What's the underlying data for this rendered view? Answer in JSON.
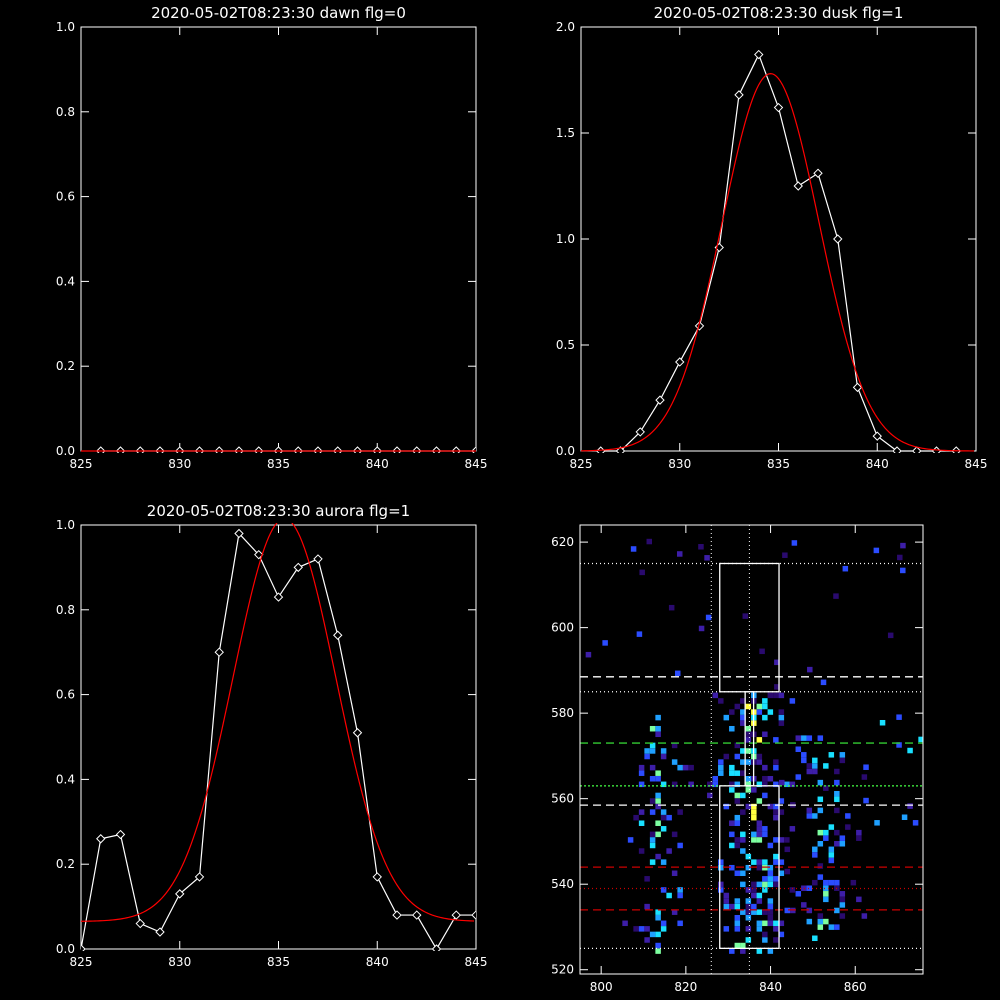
{
  "chart_data": [
    {
      "type": "line",
      "panel": "top-left",
      "title": "2020-05-02T08:23:30 dawn flg=0",
      "xlim": [
        825,
        845
      ],
      "ylim": [
        0,
        1
      ],
      "xticks": [
        825,
        830,
        835,
        840,
        845
      ],
      "yticks": [
        0.0,
        0.2,
        0.4,
        0.6,
        0.8,
        1.0
      ],
      "ytick_labels": [
        "0.0",
        "0.2",
        "0.4",
        "0.6",
        "0.8",
        "1.0"
      ],
      "series": [
        {
          "color": "#ffffff",
          "marker": "diamond",
          "x": [
            826,
            827,
            828,
            829,
            830,
            831,
            832,
            833,
            834,
            835,
            836,
            837,
            838,
            839,
            840,
            841,
            842,
            843,
            844,
            845
          ],
          "y": [
            0,
            0,
            0,
            0,
            0,
            0,
            0,
            0,
            0,
            0,
            0,
            0,
            0,
            0,
            0,
            0,
            0,
            0,
            0,
            0
          ]
        },
        {
          "color": "#ff0000",
          "marker": "none",
          "x": [
            825,
            845
          ],
          "y": [
            0,
            0
          ]
        }
      ]
    },
    {
      "type": "line",
      "panel": "top-right",
      "title": "2020-05-02T08:23:30 dusk flg=1",
      "xlim": [
        825,
        845
      ],
      "ylim": [
        0,
        2
      ],
      "xticks": [
        825,
        830,
        835,
        840,
        845
      ],
      "yticks": [
        0.0,
        0.5,
        1.0,
        1.5,
        2.0
      ],
      "ytick_labels": [
        "0.0",
        "0.5",
        "1.0",
        "1.5",
        "2.0"
      ],
      "series": [
        {
          "color": "#ffffff",
          "marker": "diamond",
          "x": [
            826,
            827,
            828,
            829,
            830,
            831,
            832,
            833,
            834,
            835,
            836,
            837,
            838,
            839,
            840,
            841,
            842,
            843,
            844
          ],
          "y": [
            0,
            0,
            0.09,
            0.24,
            0.42,
            0.59,
            0.96,
            1.68,
            1.87,
            1.62,
            1.25,
            1.31,
            1.0,
            0.3,
            0.07,
            0,
            0,
            0,
            0
          ]
        },
        {
          "color": "#ff0000",
          "marker": "none",
          "gaussian": {
            "amp": 1.78,
            "center": 834.6,
            "sigma": 2.45,
            "offset": 0
          }
        }
      ]
    },
    {
      "type": "line",
      "panel": "bottom-left",
      "title": "2020-05-02T08:23:30 aurora flg=1",
      "xlim": [
        825,
        845
      ],
      "ylim": [
        0,
        1
      ],
      "xticks": [
        825,
        830,
        835,
        840,
        845
      ],
      "yticks": [
        0.0,
        0.2,
        0.4,
        0.6,
        0.8,
        1.0
      ],
      "ytick_labels": [
        "0.0",
        "0.2",
        "0.4",
        "0.6",
        "0.8",
        "1.0"
      ],
      "series": [
        {
          "color": "#ffffff",
          "marker": "diamond",
          "x": [
            825,
            826,
            827,
            828,
            829,
            830,
            831,
            832,
            833,
            834,
            835,
            836,
            837,
            838,
            839,
            840,
            841,
            842,
            843,
            844,
            845
          ],
          "y": [
            0.0,
            0.26,
            0.27,
            0.06,
            0.04,
            0.13,
            0.17,
            0.7,
            0.98,
            0.93,
            0.83,
            0.9,
            0.92,
            0.74,
            0.51,
            0.17,
            0.08,
            0.08,
            0.0,
            0.08,
            0.08
          ]
        },
        {
          "color": "#ff0000",
          "marker": "none",
          "gaussian": {
            "amp": 0.95,
            "center": 835.3,
            "sigma": 2.6,
            "offset": 0.065
          }
        }
      ]
    },
    {
      "type": "heatmap",
      "panel": "bottom-right",
      "xlim": [
        795,
        876
      ],
      "ylim": [
        519,
        624
      ],
      "xticks": [
        800,
        820,
        840,
        860
      ],
      "yticks": [
        520,
        540,
        560,
        580,
        600,
        620
      ],
      "vertical_dotted": [
        826,
        835
      ],
      "horizontal_dotted_white": [
        615,
        585,
        525
      ],
      "horizontal_dashed_white": [
        588.5,
        558.5
      ],
      "horizontal_dashed_green": [
        573
      ],
      "horizontal_dotted_green": [
        563
      ],
      "horizontal_dashed_red": [
        544,
        534
      ],
      "horizontal_dotted_red": [
        539
      ],
      "boxes": [
        {
          "x0": 828,
          "x1": 842,
          "y0": 585,
          "y1": 615
        },
        {
          "x0": 828,
          "x1": 842,
          "y0": 525,
          "y1": 563
        }
      ],
      "connector": {
        "x0": 834,
        "x1": 836,
        "y0": 563,
        "y1": 585
      },
      "colorscale": [
        "#2a0a6e",
        "#3d1ea8",
        "#2b4cff",
        "#1fa0ff",
        "#19e0ff",
        "#7dffa0",
        "#ffff40"
      ]
    }
  ]
}
